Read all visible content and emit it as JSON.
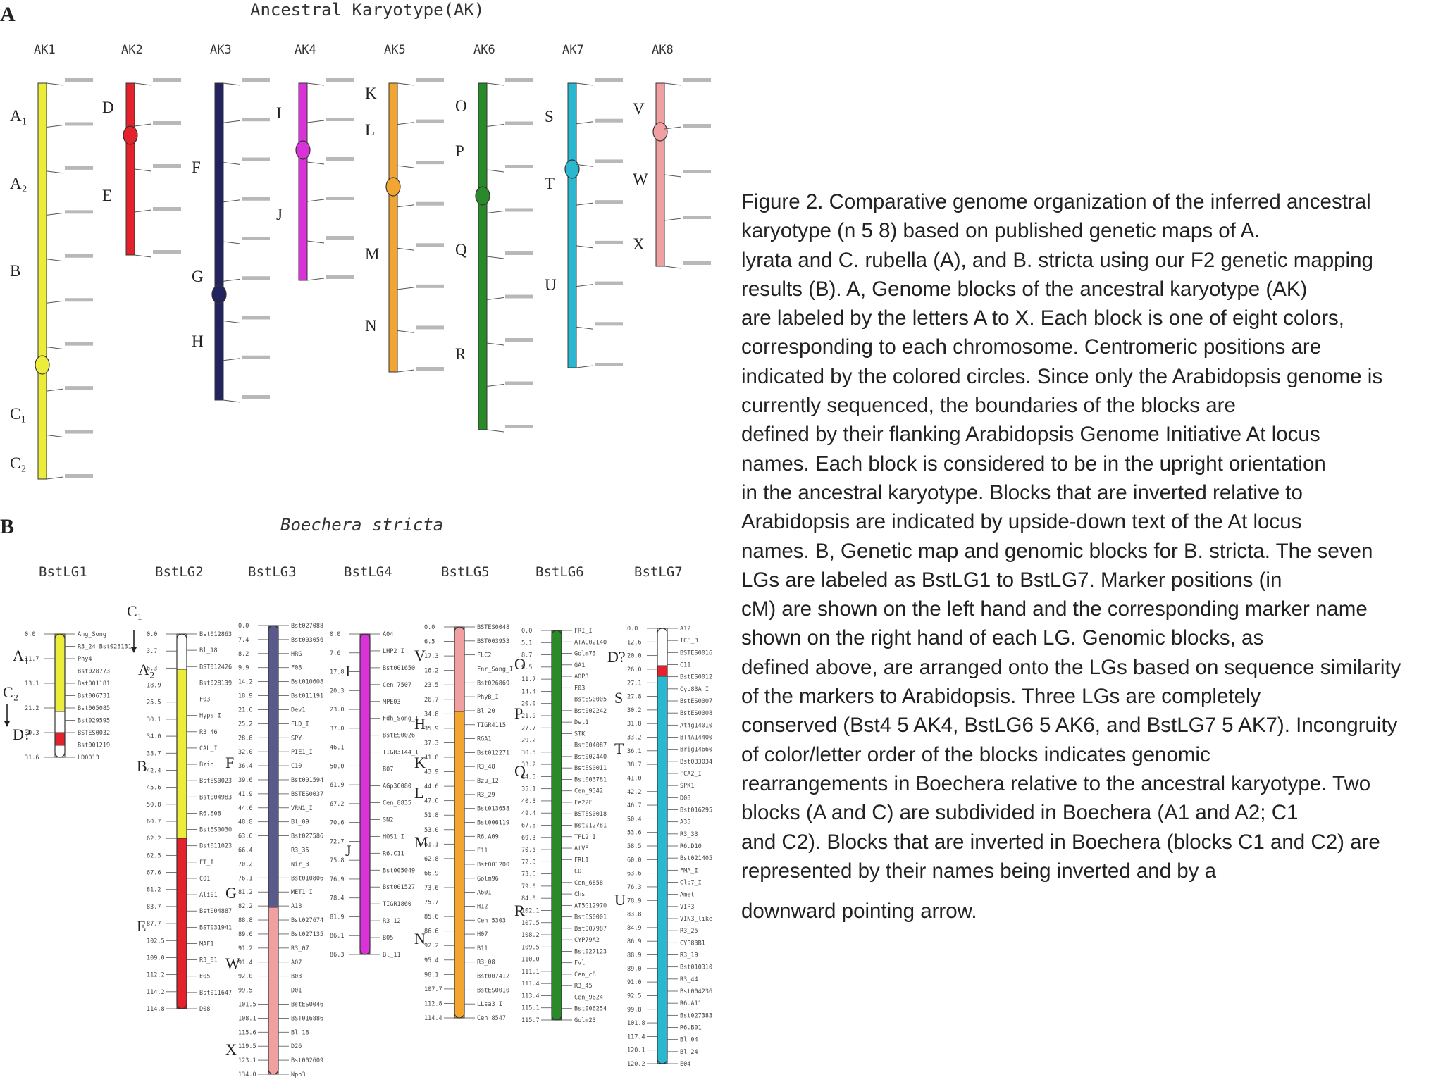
{
  "panel_a": {
    "letter": "A",
    "title": "Ancestral Karyotype(AK)",
    "chromosomes": [
      {
        "name": "AK1",
        "color": "#ecec3a"
      },
      {
        "name": "AK2",
        "color": "#e3222b"
      },
      {
        "name": "AK3",
        "color": "#23235f"
      },
      {
        "name": "AK4",
        "color": "#d832d8"
      },
      {
        "name": "AK5",
        "color": "#f2a531"
      },
      {
        "name": "AK6",
        "color": "#2a8a2a"
      },
      {
        "name": "AK7",
        "color": "#2ab8d0"
      },
      {
        "name": "AK8",
        "color": "#f0a0a0"
      }
    ],
    "block_labels": [
      {
        "text": "A₁"
      },
      {
        "text": "A₂"
      },
      {
        "text": "B"
      },
      {
        "text": "C₁"
      },
      {
        "text": "C₂"
      },
      {
        "text": "D"
      },
      {
        "text": "E"
      },
      {
        "text": "F"
      },
      {
        "text": "G"
      },
      {
        "text": "H"
      },
      {
        "text": "I"
      },
      {
        "text": "J"
      },
      {
        "text": "K"
      },
      {
        "text": "L"
      },
      {
        "text": "M"
      },
      {
        "text": "N"
      },
      {
        "text": "O"
      },
      {
        "text": "P"
      },
      {
        "text": "Q"
      },
      {
        "text": "R"
      },
      {
        "text": "S"
      },
      {
        "text": "T"
      },
      {
        "text": "U"
      },
      {
        "text": "V"
      },
      {
        "text": "W"
      },
      {
        "text": "X"
      }
    ]
  },
  "panel_b": {
    "letter": "B",
    "title": "Boechera stricta",
    "linkage_groups": [
      {
        "name": "BstLG1"
      },
      {
        "name": "BstLG2"
      },
      {
        "name": "BstLG3"
      },
      {
        "name": "BstLG4"
      },
      {
        "name": "BstLG5"
      },
      {
        "name": "BstLG6"
      },
      {
        "name": "BstLG7"
      }
    ],
    "block_labels": [
      {
        "text": "A₁"
      },
      {
        "text": "C₂"
      },
      {
        "text": "D?"
      },
      {
        "text": "C₁"
      },
      {
        "text": "A₂"
      },
      {
        "text": "B"
      },
      {
        "text": "E"
      },
      {
        "text": "F"
      },
      {
        "text": "G"
      },
      {
        "text": "W"
      },
      {
        "text": "X"
      },
      {
        "text": "I"
      },
      {
        "text": "J"
      },
      {
        "text": "V"
      },
      {
        "text": "H"
      },
      {
        "text": "K"
      },
      {
        "text": "L"
      },
      {
        "text": "M"
      },
      {
        "text": "N"
      },
      {
        "text": "O"
      },
      {
        "text": "P"
      },
      {
        "text": "Q"
      },
      {
        "text": "R"
      },
      {
        "text": "D?"
      },
      {
        "text": "S"
      },
      {
        "text": "T"
      },
      {
        "text": "U"
      }
    ],
    "lg1_positions": [
      "0.0",
      "11.7",
      "13.1",
      "21.2",
      "30.3",
      "31.6"
    ],
    "lg1_markers": [
      "Ang_Song",
      "R3_24-Bst028131",
      "Phy4",
      "Bst028773",
      "Bst001181",
      "Bst006731",
      "Bst005085",
      "Bst029595",
      "BSTES0032",
      "Bst001219",
      "LD0013"
    ],
    "lg2_positions": [
      "0.0",
      "3.7",
      "6.3",
      "18.9",
      "25.5",
      "30.1",
      "34.0",
      "38.7",
      "42.4",
      "45.6",
      "50.8",
      "60.7",
      "62.2",
      "62.5",
      "67.6",
      "81.2",
      "83.7",
      "87.7",
      "102.5",
      "109.0",
      "112.2",
      "114.2",
      "114.8"
    ],
    "lg2_markers": [
      "Bst012863",
      "Bl_18",
      "BST012426",
      "Bst028139",
      "F03",
      "Hyps_I",
      "R3_46",
      "CAL_I",
      "Bzip",
      "BstES0023",
      "Bst004983",
      "R6.E08",
      "BstES0030",
      "Bst011023",
      "FT_I",
      "C01",
      "Ali01",
      "Bst004887",
      "BST031941",
      "MAF1",
      "R3_01",
      "E05",
      "Bst011647",
      "D08"
    ],
    "lg3_markers": [
      "Bst027088",
      "Bst003056",
      "HRG",
      "F08",
      "Bst010608",
      "Bst011191",
      "Dev1",
      "FLD_I",
      "SPY",
      "PIE1_I",
      "C10",
      "Bst001594",
      "BSTES0037",
      "VRN1_I",
      "Bl_09",
      "Bst027586",
      "R3_35",
      "Nir_3",
      "Bst010806",
      "MET1_I",
      "A18",
      "Bst027674",
      "Bst027135",
      "R3_07",
      "A07",
      "B03",
      "D01",
      "BstES0046",
      "BST016886",
      "Bl_18",
      "D26",
      "Bst002609",
      "Nph3"
    ],
    "lg3_positions": [
      "0.0",
      "7.4",
      "8.2",
      "9.9",
      "14.2",
      "18.9",
      "21.6",
      "25.2",
      "28.8",
      "32.0",
      "36.4",
      "39.6",
      "41.9",
      "44.6",
      "48.8",
      "63.6",
      "66.4",
      "70.2",
      "76.1",
      "81.2",
      "82.2",
      "88.8",
      "89.6",
      "91.2",
      "91.4",
      "92.0",
      "99.5",
      "101.5",
      "108.1",
      "115.6",
      "119.5",
      "123.1",
      "134.0"
    ],
    "lg4_positions": [
      "0.0",
      "7.6",
      "17.8",
      "20.3",
      "23.0",
      "37.0",
      "46.1",
      "50.0",
      "61.9",
      "67.2",
      "70.6",
      "72.7",
      "75.8",
      "76.9",
      "78.4",
      "81.9",
      "86.1",
      "86.3"
    ],
    "lg4_markers": [
      "A04",
      "LHP2_I",
      "Bst001650",
      "Cen_7507",
      "MPE03",
      "Fdh_Song_I",
      "BstES0026",
      "TIGR3144_I",
      "B07",
      "AGp36080",
      "Cen_8835",
      "SN2",
      "HOS1_I",
      "R6.C11",
      "Bst005049",
      "Bst001527",
      "TIGR1860",
      "R3_12",
      "B05",
      "Bl_11"
    ],
    "lg5_positions": [
      "0.0",
      "6.5",
      "17.3",
      "16.2",
      "23.5",
      "26.7",
      "34.8",
      "35.9",
      "37.3",
      "41.8",
      "43.9",
      "44.6",
      "47.6",
      "51.8",
      "53.0",
      "61.1",
      "62.8",
      "66.9",
      "73.6",
      "75.7",
      "85.6",
      "86.6",
      "92.2",
      "95.4",
      "98.1",
      "107.7",
      "112.8",
      "114.4"
    ],
    "lg5_markers": [
      "BSTES0048",
      "BST003953",
      "FLC2",
      "Fnr_Song_I",
      "Bst026869",
      "PhyB_I",
      "Bl_20",
      "TIGR4115",
      "RGA1",
      "Bst012271",
      "R3_48",
      "Bzu_12",
      "R3_29",
      "Bst013658",
      "Bst006119",
      "R6.A09",
      "E11",
      "Bst001200",
      "Golm96",
      "A601",
      "H12",
      "Cen_5303",
      "H07",
      "B11",
      "R3_08",
      "Bst007412",
      "BstES0010",
      "LLsa3_I",
      "Cen_8547"
    ],
    "lg6_positions": [
      "0.0",
      "5.1",
      "8.7",
      "9.5",
      "11.7",
      "14.4",
      "20.0",
      "21.9",
      "27.7",
      "29.2",
      "30.5",
      "33.2",
      "34.5",
      "35.1",
      "40.3",
      "49.4",
      "67.8",
      "69.3",
      "70.5",
      "72.9",
      "73.6",
      "79.0",
      "84.0",
      "102.1",
      "107.5",
      "108.2",
      "109.5",
      "110.0",
      "111.1",
      "111.4",
      "113.4",
      "115.1",
      "115.7"
    ],
    "lg6_markers": [
      "FRI_I",
      "ATAG02140",
      "Golm73",
      "GA1",
      "AOP3",
      "F03",
      "BstES0005",
      "Bst002242",
      "Det1",
      "STK",
      "Bst004087",
      "Bst002440",
      "BstES0011",
      "Bst003781",
      "Cen_9342",
      "Fe22F",
      "BSTES0018",
      "Bst012781",
      "TFL2_I",
      "AtVB",
      "FRL1",
      "CO",
      "Cen_6858",
      "Chs",
      "AT5G12970",
      "BstES0001",
      "Bst007987",
      "CYP79A2",
      "Bst027123",
      "Fvl",
      "Cen_c8",
      "R3_45",
      "Cen_9624",
      "Bst006254",
      "Golm23"
    ],
    "lg7_positions": [
      "0.0",
      "12.6",
      "20.0",
      "26.0",
      "27.1",
      "27.8",
      "30.2",
      "31.8",
      "33.2",
      "36.1",
      "38.7",
      "41.0",
      "42.2",
      "46.7",
      "50.4",
      "53.6",
      "58.5",
      "60.0",
      "63.6",
      "76.3",
      "78.9",
      "83.8",
      "84.9",
      "86.9",
      "88.9",
      "89.0",
      "91.0",
      "92.5",
      "99.8",
      "101.8",
      "117.4",
      "120.1",
      "120.2"
    ],
    "lg7_markers": [
      "A12",
      "ICE_3",
      "BSTES0016",
      "C11",
      "BstES0012",
      "Cyp83A_I",
      "BstES0007",
      "BstES0008",
      "At4g14010",
      "BT4A14400",
      "Brig14660",
      "Bst033034",
      "FCA2_I",
      "SPK1",
      "D08",
      "Bst016295",
      "A35",
      "R3_33",
      "R6.D10",
      "Bst021405",
      "FMA_I",
      "Clp7_I",
      "Amet",
      "VIP3",
      "VIN3_like",
      "R3_25",
      "CYP83B1",
      "R3_19",
      "Bst010310",
      "R3_44",
      "Bst004236",
      "R6.A11",
      "Bst027383",
      "R6.B01",
      "Bl_04",
      "Bl_24",
      "E04"
    ]
  },
  "caption_lines": [
    "Figure 2. Comparative genome organization of the inferred ancestral",
    "karyotype (n 5 8) based on published genetic maps of A.",
    "lyrata and C. rubella (A), and B. stricta using our F2 genetic mapping",
    "results (B). A, Genome blocks of the ancestral karyotype (AK)",
    "are labeled by the letters A to X. Each block is one of eight colors,",
    "corresponding to each chromosome. Centromeric positions are",
    "indicated by the colored circles. Since only the Arabidopsis genome is",
    "currently sequenced, the boundaries of the blocks are",
    "defined by their flanking Arabidopsis Genome Initiative At locus",
    "names. Each block is considered to be in the upright orientation",
    "in the ancestral karyotype. Blocks that are inverted relative to",
    "Arabidopsis are indicated by upside-down text of the At locus",
    "names. B, Genetic map and genomic blocks for B. stricta. The seven",
    "LGs are labeled as BstLG1 to BstLG7. Marker positions (in",
    "cM) are shown on the left hand and the corresponding marker name",
    "shown on the right hand of each LG. Genomic blocks, as",
    "defined above, are arranged onto the LGs based on sequence similarity",
    "of the markers to Arabidopsis. Three LGs are completely",
    "conserved (Bst4 5 AK4, BstLG6 5 AK6, and BstLG7 5 AK7). Incongruity",
    "of color/letter order of the blocks indicates genomic",
    "rearrangements in Boechera relative to the ancestral karyotype. Two",
    "blocks (A and C) are subdivided in Boechera (A1 and A2; C1",
    "and C2). Blocks that are inverted in Boechera (blocks C1 and C2) are",
    "represented by their names being inverted and by a",
    "downward pointing arrow."
  ]
}
